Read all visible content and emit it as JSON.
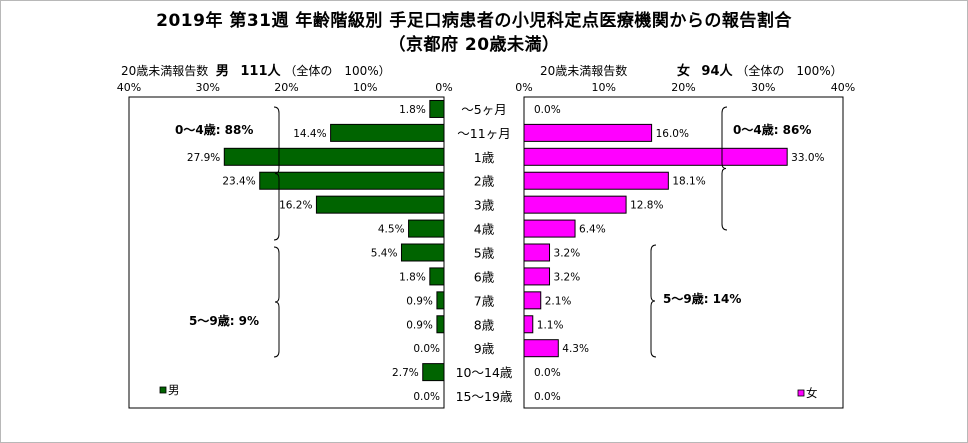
{
  "title": {
    "line1": "2019年 第31週 年齢階級別 手足口病患者の小児科定点医療機関からの報告割合",
    "line2": "（京都府 20歳未満）"
  },
  "left_header": {
    "label": "20歳未満報告数",
    "sex": "男",
    "count": "111人",
    "total": "（全体の　100%）"
  },
  "right_header": {
    "label": "20歳未満報告数",
    "sex": "女",
    "count": "94人",
    "total": "（全体の　100%）"
  },
  "colors": {
    "male": "#006400",
    "female": "#ff00ff"
  },
  "chart_data": {
    "type": "bar",
    "subtype": "population-pyramid",
    "categories": [
      "～5ヶ月",
      "～11ヶ月",
      "1歳",
      "2歳",
      "3歳",
      "4歳",
      "5歳",
      "6歳",
      "7歳",
      "8歳",
      "9歳",
      "10～14歳",
      "15～19歳"
    ],
    "series": [
      {
        "name": "男",
        "side": "left",
        "values": [
          1.8,
          14.4,
          27.9,
          23.4,
          16.2,
          4.5,
          5.4,
          1.8,
          0.9,
          0.9,
          0.0,
          2.7,
          0.0
        ],
        "labels": [
          "1.8%",
          "14.4%",
          "27.9%",
          "23.4%",
          "16.2%",
          "4.5%",
          "5.4%",
          "1.8%",
          "0.9%",
          "0.9%",
          "0.0%",
          "2.7%",
          "0.0%"
        ]
      },
      {
        "name": "女",
        "side": "right",
        "values": [
          0.0,
          16.0,
          33.0,
          18.1,
          12.8,
          6.4,
          3.2,
          3.2,
          2.1,
          1.1,
          4.3,
          0.0,
          0.0
        ],
        "labels": [
          "0.0%",
          "16.0%",
          "33.0%",
          "18.1%",
          "12.8%",
          "6.4%",
          "3.2%",
          "3.2%",
          "2.1%",
          "1.1%",
          "4.3%",
          "0.0%",
          "0.0%"
        ]
      }
    ],
    "left_ticks": [
      "40%",
      "30%",
      "20%",
      "10%",
      "0%"
    ],
    "right_ticks": [
      "0%",
      "10%",
      "20%",
      "30%",
      "40%"
    ],
    "xlim": [
      0,
      40
    ],
    "annotations": {
      "male_0_4": "0～4歳: 88%",
      "male_5_9": "5～9歳: 9%",
      "female_0_4": "0～4歳: 86%",
      "female_5_9": "5～9歳: 14%"
    },
    "legend": {
      "male": "男",
      "female": "女"
    }
  }
}
